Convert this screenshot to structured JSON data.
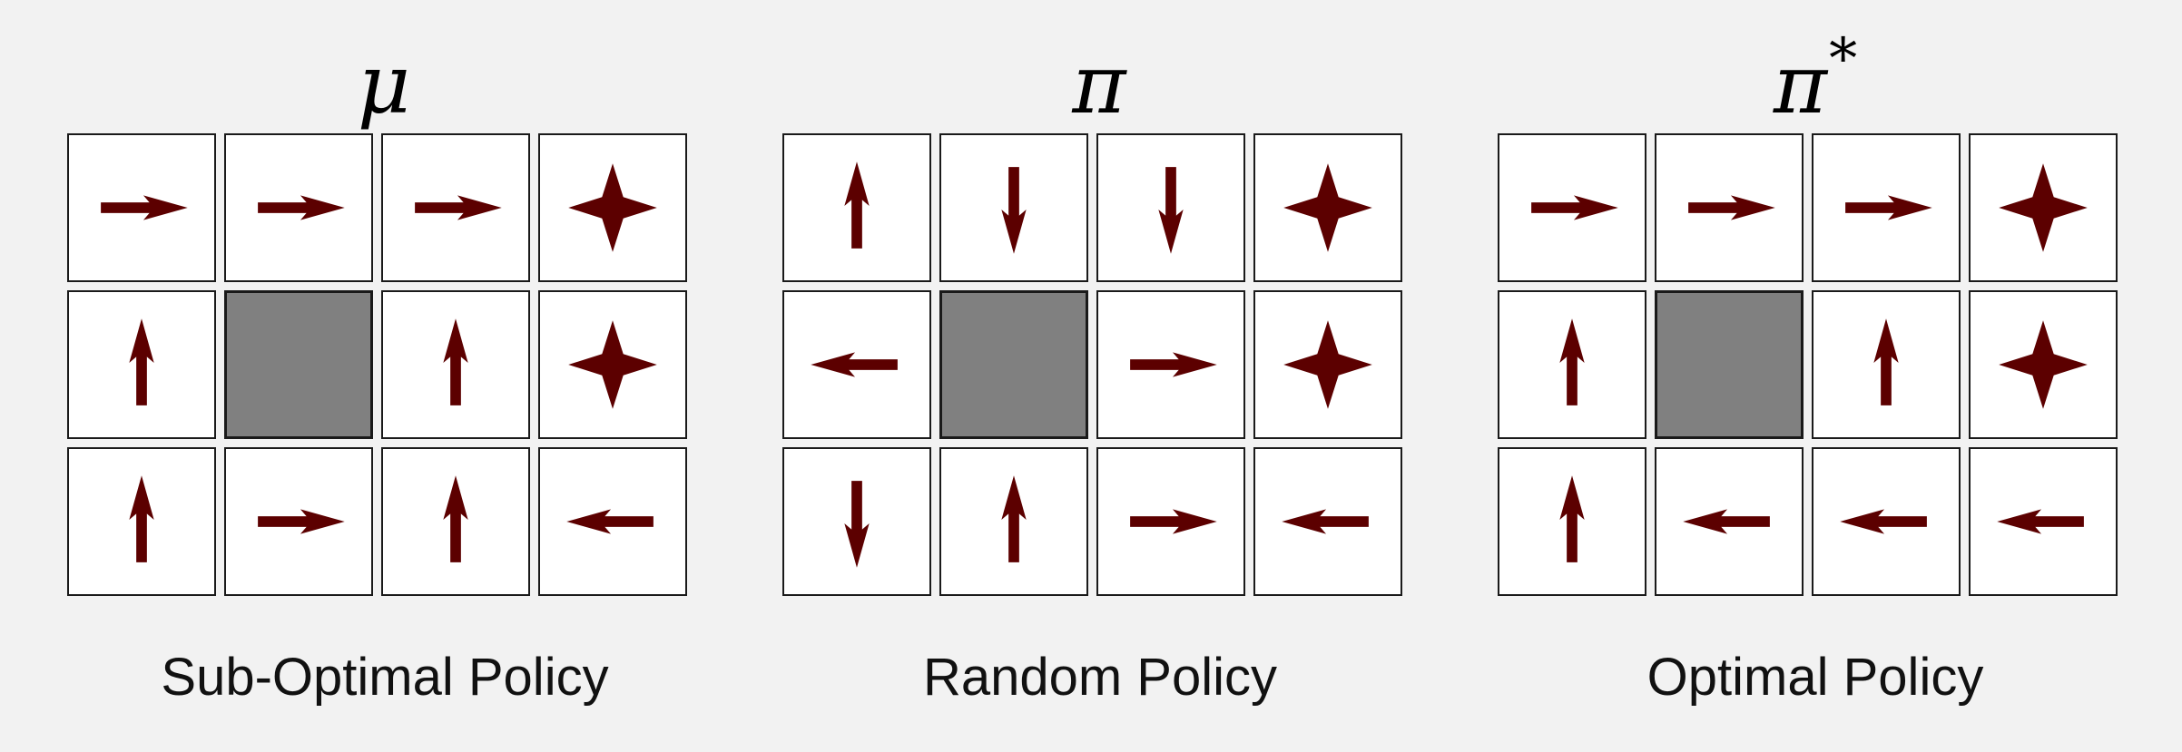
{
  "panels": [
    {
      "symbol": "μ",
      "superscript": "",
      "caption": "Sub-Optimal Policy",
      "grid": [
        [
          "right",
          "right",
          "right",
          "goal"
        ],
        [
          "up",
          "wall",
          "up",
          "goal"
        ],
        [
          "up",
          "right",
          "up",
          "left"
        ]
      ]
    },
    {
      "symbol": "π",
      "superscript": "",
      "caption": "Random Policy",
      "grid": [
        [
          "up",
          "down",
          "down",
          "goal"
        ],
        [
          "left",
          "wall",
          "right",
          "goal"
        ],
        [
          "down",
          "up",
          "right",
          "left"
        ]
      ]
    },
    {
      "symbol": "π",
      "superscript": "*",
      "caption": "Optimal Policy",
      "grid": [
        [
          "right",
          "right",
          "right",
          "goal"
        ],
        [
          "up",
          "wall",
          "up",
          "goal"
        ],
        [
          "up",
          "left",
          "left",
          "left"
        ]
      ]
    }
  ],
  "colors": {
    "arrow": "#5c0000",
    "wall": "#808080",
    "cell": "#ffffff",
    "background": "#f2f2f2"
  },
  "icons": {
    "up": "arrow-up-icon",
    "down": "arrow-down-icon",
    "left": "arrow-left-icon",
    "right": "arrow-right-icon",
    "goal": "four-point-star-icon"
  }
}
